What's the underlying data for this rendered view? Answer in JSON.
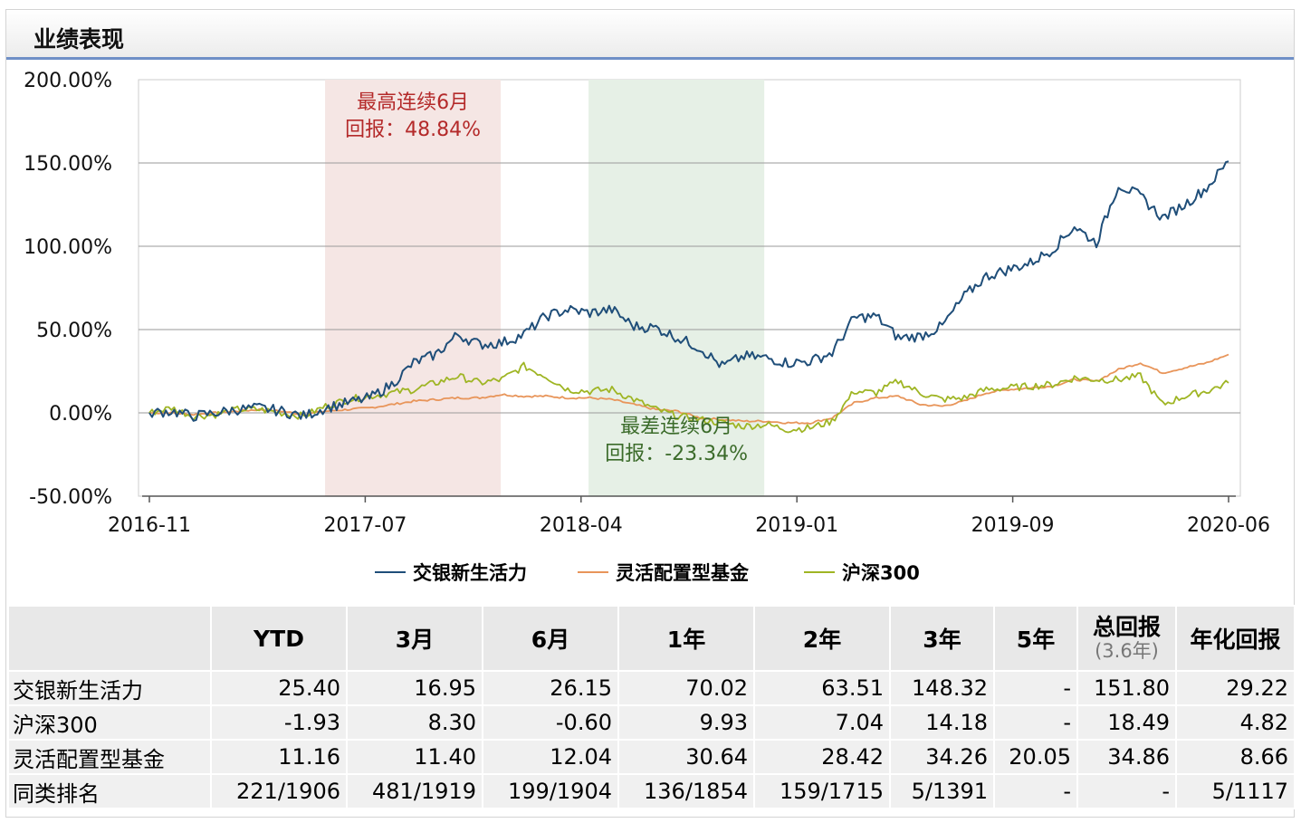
{
  "panel": {
    "title": "业绩表现"
  },
  "chart_data": {
    "type": "line",
    "x_ticks": [
      "2016-11",
      "2017-07",
      "2018-04",
      "2019-01",
      "2019-09",
      "2020-06"
    ],
    "y_ticks": [
      "200.00%",
      "150.00%",
      "100.00%",
      "50.00%",
      "0.00%",
      "-50.00%"
    ],
    "ylim": [
      -50,
      200
    ],
    "grid": true,
    "legend_position": "bottom",
    "highlights": [
      {
        "name": "best",
        "label_line1": "最高连续6月",
        "label_line2": "回报：48.84%",
        "start_month": 7,
        "end_month": 14,
        "fill": "#f5e6e4",
        "text_color": "#b42a2a"
      },
      {
        "name": "worst",
        "label_line1": "最差连续6月",
        "label_line2": "回报：-23.34%",
        "start_month": 17.5,
        "end_month": 24.5,
        "fill": "#e6f0e6",
        "text_color": "#3b6b2a"
      }
    ],
    "series": [
      {
        "name": "交银新生活力",
        "color": "#1f4e79",
        "points": [
          [
            0,
            0
          ],
          [
            1,
            1
          ],
          [
            2,
            -2
          ],
          [
            3,
            0
          ],
          [
            4,
            2
          ],
          [
            5,
            3
          ],
          [
            6,
            1
          ],
          [
            7,
            -2
          ],
          [
            8,
            3
          ],
          [
            9,
            6
          ],
          [
            10,
            9
          ],
          [
            11,
            17
          ],
          [
            12,
            30
          ],
          [
            13,
            35
          ],
          [
            14,
            47
          ],
          [
            15,
            41
          ],
          [
            16,
            42
          ],
          [
            17,
            47
          ],
          [
            18,
            58
          ],
          [
            19,
            62
          ],
          [
            20,
            60
          ],
          [
            21,
            62
          ],
          [
            22,
            52
          ],
          [
            23,
            51
          ],
          [
            24,
            45
          ],
          [
            25,
            39
          ],
          [
            26,
            28
          ],
          [
            27,
            34
          ],
          [
            28,
            33
          ],
          [
            29,
            30
          ],
          [
            30,
            31
          ],
          [
            31,
            36
          ],
          [
            32,
            57
          ],
          [
            33,
            58
          ],
          [
            34,
            45
          ],
          [
            35,
            46
          ],
          [
            36,
            52
          ],
          [
            37,
            70
          ],
          [
            38,
            82
          ],
          [
            39,
            86
          ],
          [
            40,
            90
          ],
          [
            41,
            98
          ],
          [
            42,
            112
          ],
          [
            43,
            102
          ],
          [
            44,
            137
          ],
          [
            45,
            130
          ],
          [
            46,
            117
          ],
          [
            47,
            125
          ],
          [
            48,
            135
          ],
          [
            49,
            151
          ]
        ]
      },
      {
        "name": "灵活配置型基金",
        "color": "#e8955a",
        "points": [
          [
            0,
            0
          ],
          [
            1,
            0
          ],
          [
            2,
            -1
          ],
          [
            3,
            0
          ],
          [
            4,
            1
          ],
          [
            5,
            2
          ],
          [
            6,
            1
          ],
          [
            7,
            -1
          ],
          [
            8,
            1
          ],
          [
            9,
            2
          ],
          [
            10,
            3
          ],
          [
            11,
            5
          ],
          [
            12,
            7
          ],
          [
            13,
            8
          ],
          [
            14,
            9
          ],
          [
            15,
            9
          ],
          [
            16,
            11
          ],
          [
            17,
            10
          ],
          [
            18,
            10
          ],
          [
            19,
            9
          ],
          [
            20,
            9
          ],
          [
            21,
            8
          ],
          [
            22,
            5
          ],
          [
            23,
            2
          ],
          [
            24,
            1
          ],
          [
            25,
            -3
          ],
          [
            26,
            -4
          ],
          [
            27,
            -5
          ],
          [
            28,
            -5
          ],
          [
            29,
            -6
          ],
          [
            30,
            -6
          ],
          [
            31,
            -3
          ],
          [
            32,
            6
          ],
          [
            33,
            9
          ],
          [
            34,
            10
          ],
          [
            35,
            5
          ],
          [
            36,
            4
          ],
          [
            37,
            7
          ],
          [
            38,
            12
          ],
          [
            39,
            14
          ],
          [
            40,
            15
          ],
          [
            41,
            16
          ],
          [
            42,
            20
          ],
          [
            43,
            19
          ],
          [
            44,
            26
          ],
          [
            45,
            30
          ],
          [
            46,
            24
          ],
          [
            47,
            27
          ],
          [
            48,
            30
          ],
          [
            49,
            35
          ]
        ]
      },
      {
        "name": "沪深300",
        "color": "#9fb524",
        "points": [
          [
            0,
            0
          ],
          [
            1,
            3
          ],
          [
            2,
            -2
          ],
          [
            3,
            -1
          ],
          [
            4,
            2
          ],
          [
            5,
            2
          ],
          [
            6,
            0
          ],
          [
            7,
            -2
          ],
          [
            8,
            4
          ],
          [
            9,
            8
          ],
          [
            10,
            10
          ],
          [
            11,
            12
          ],
          [
            12,
            14
          ],
          [
            13,
            18
          ],
          [
            14,
            22
          ],
          [
            15,
            18
          ],
          [
            16,
            20
          ],
          [
            17,
            28
          ],
          [
            18,
            22
          ],
          [
            19,
            14
          ],
          [
            20,
            13
          ],
          [
            21,
            14
          ],
          [
            22,
            8
          ],
          [
            23,
            2
          ],
          [
            24,
            -2
          ],
          [
            25,
            -4
          ],
          [
            26,
            -6
          ],
          [
            27,
            -8
          ],
          [
            28,
            -7
          ],
          [
            29,
            -10
          ],
          [
            30,
            -9
          ],
          [
            31,
            -5
          ],
          [
            32,
            13
          ],
          [
            33,
            12
          ],
          [
            34,
            19
          ],
          [
            35,
            12
          ],
          [
            36,
            8
          ],
          [
            37,
            9
          ],
          [
            38,
            14
          ],
          [
            39,
            15
          ],
          [
            40,
            16
          ],
          [
            41,
            17
          ],
          [
            42,
            21
          ],
          [
            43,
            20
          ],
          [
            44,
            20
          ],
          [
            45,
            22
          ],
          [
            46,
            5
          ],
          [
            47,
            10
          ],
          [
            48,
            13
          ],
          [
            49,
            18
          ]
        ]
      }
    ]
  },
  "table": {
    "headers": [
      "",
      "YTD",
      "3月",
      "6月",
      "1年",
      "2年",
      "3年",
      "5年",
      "总回报",
      "年化回报"
    ],
    "total_sub": "(3.6年)",
    "rows": [
      {
        "name": "交银新生活力",
        "cells": [
          "25.40",
          "16.95",
          "26.15",
          "70.02",
          "63.51",
          "148.32",
          "-",
          "151.80",
          "29.22"
        ]
      },
      {
        "name": "沪深300",
        "cells": [
          "-1.93",
          "8.30",
          "-0.60",
          "9.93",
          "7.04",
          "14.18",
          "-",
          "18.49",
          "4.82"
        ]
      },
      {
        "name": "灵活配置型基金",
        "cells": [
          "11.16",
          "11.40",
          "12.04",
          "30.64",
          "28.42",
          "34.26",
          "20.05",
          "34.86",
          "8.66"
        ]
      },
      {
        "name": "同类排名",
        "cells": [
          "221/1906",
          "481/1919",
          "199/1904",
          "136/1854",
          "159/1715",
          "5/1391",
          "-",
          "-",
          "5/1117"
        ]
      }
    ]
  }
}
